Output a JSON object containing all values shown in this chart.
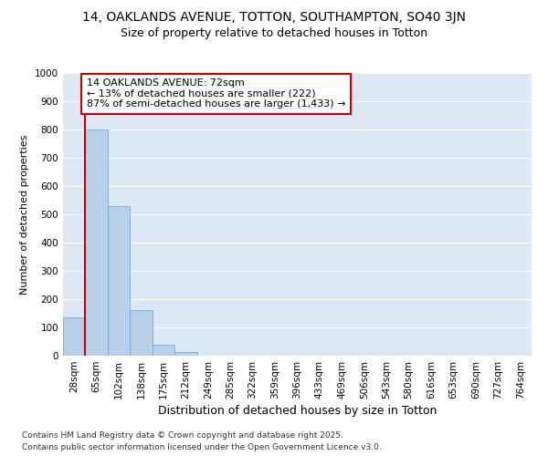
{
  "title1": "14, OAKLANDS AVENUE, TOTTON, SOUTHAMPTON, SO40 3JN",
  "title2": "Size of property relative to detached houses in Totton",
  "xlabel": "Distribution of detached houses by size in Totton",
  "ylabel": "Number of detached properties",
  "categories": [
    "28sqm",
    "65sqm",
    "102sqm",
    "138sqm",
    "175sqm",
    "212sqm",
    "249sqm",
    "285sqm",
    "322sqm",
    "359sqm",
    "396sqm",
    "433sqm",
    "469sqm",
    "506sqm",
    "543sqm",
    "580sqm",
    "616sqm",
    "653sqm",
    "690sqm",
    "727sqm",
    "764sqm"
  ],
  "values": [
    135,
    800,
    530,
    160,
    38,
    12,
    0,
    0,
    0,
    0,
    0,
    0,
    0,
    0,
    0,
    0,
    0,
    0,
    0,
    0,
    0
  ],
  "bar_color": "#b8cfe8",
  "bar_edge_color": "#6a9fd0",
  "vline_x_index": 1,
  "annotation_line1": "14 OAKLANDS AVENUE: 72sqm",
  "annotation_line2": "← 13% of detached houses are smaller (222)",
  "annotation_line3": "87% of semi-detached houses are larger (1,433) →",
  "annotation_box_edgecolor": "#cc0000",
  "vline_color": "#cc0000",
  "ylim": [
    0,
    1000
  ],
  "yticks": [
    0,
    100,
    200,
    300,
    400,
    500,
    600,
    700,
    800,
    900,
    1000
  ],
  "bg_color": "#dde8f5",
  "footer_line1": "Contains HM Land Registry data © Crown copyright and database right 2025.",
  "footer_line2": "Contains public sector information licensed under the Open Government Licence v3.0.",
  "title1_fontsize": 10,
  "title2_fontsize": 9,
  "xlabel_fontsize": 9,
  "ylabel_fontsize": 8,
  "tick_fontsize": 7.5,
  "footer_fontsize": 6.5,
  "annotation_fontsize": 8
}
